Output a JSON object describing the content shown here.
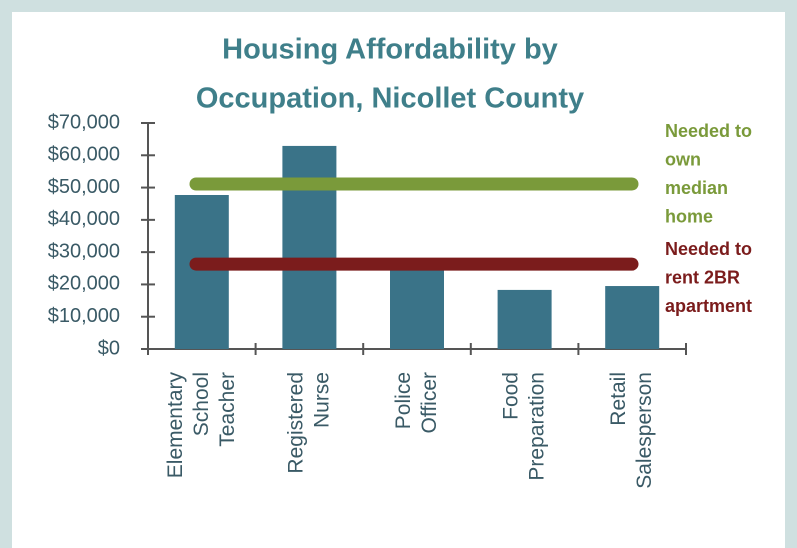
{
  "chart_data": {
    "type": "bar",
    "title": [
      "Housing Affordability by",
      "Occupation, Nicollet County"
    ],
    "categories": [
      "Elementary School Teacher",
      "Registered Nurse",
      "Police Officer",
      "Food Preparation",
      "Retail Salesperson"
    ],
    "values": [
      47700,
      62900,
      25000,
      18300,
      19500
    ],
    "color": "#3a7388",
    "ylim": [
      0,
      70000
    ],
    "yticks": [
      {
        "value": 0,
        "label": "$0"
      },
      {
        "value": 10000,
        "label": "$10,000"
      },
      {
        "value": 20000,
        "label": "$20,000"
      },
      {
        "value": 30000,
        "label": "$30,000"
      },
      {
        "value": 40000,
        "label": "$40,000"
      },
      {
        "value": 50000,
        "label": "$50,000"
      },
      {
        "value": 60000,
        "label": "$60,000"
      },
      {
        "value": 70000,
        "label": "$70,000"
      }
    ],
    "reference_lines": [
      {
        "label": [
          "Needed to",
          "own",
          "median",
          "home"
        ],
        "value": 51100,
        "color": "#7a9a3a"
      },
      {
        "label": [
          "Needed to",
          "rent 2BR",
          "apartment"
        ],
        "value": 26300,
        "color": "#7b1c1c"
      }
    ]
  }
}
